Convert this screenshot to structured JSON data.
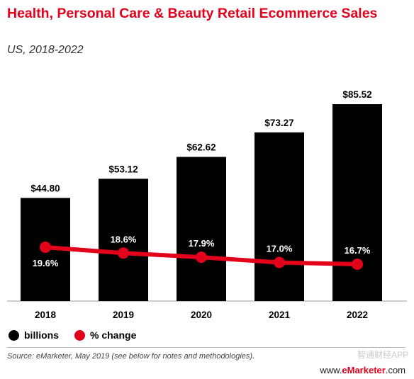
{
  "header": {
    "title": "Health, Personal Care & Beauty Retail Ecommerce Sales",
    "subtitle": "US, 2018-2022"
  },
  "chart_data": {
    "type": "bar",
    "categories": [
      "2018",
      "2019",
      "2020",
      "2021",
      "2022"
    ],
    "series": [
      {
        "name": "billions",
        "type": "bar",
        "values": [
          44.8,
          53.12,
          62.62,
          73.27,
          85.52
        ],
        "labels": [
          "$44.80",
          "$53.12",
          "$62.62",
          "$73.27",
          "$85.52"
        ],
        "color": "#000000"
      },
      {
        "name": "% change",
        "type": "line",
        "values": [
          19.6,
          18.6,
          17.9,
          17.0,
          16.7
        ],
        "labels": [
          "19.6%",
          "18.6%",
          "17.9%",
          "17.0%",
          "16.7%"
        ],
        "color": "#e3001b"
      }
    ],
    "legend": "bottom-left",
    "grid": false
  },
  "legend": {
    "billions": "billions",
    "pct_change": "% change"
  },
  "footer": {
    "source": "Source: eMarketer, May 2019 (see below for notes and methodologies).",
    "brand_prefix": "www.",
    "brand_mark": "e",
    "brand_rest": "Marketer",
    "brand_suffix": ".com",
    "watermark": "智通财经APP"
  }
}
